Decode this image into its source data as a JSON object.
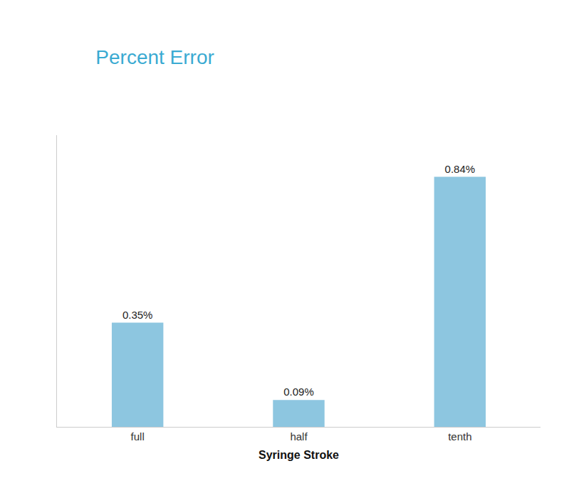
{
  "chart_data": {
    "type": "bar",
    "title": "Percent Error",
    "xlabel": "Syringe Stroke",
    "categories": [
      "full",
      "half",
      "tenth"
    ],
    "values": [
      0.35,
      0.09,
      0.84
    ],
    "value_labels": [
      "0.35%",
      "0.09%",
      "0.84%"
    ],
    "color": "#8DC6E0",
    "ylim": [
      0,
      0.98
    ],
    "yticks": [],
    "grid": false,
    "data_labels": true,
    "tick_labels": "x"
  }
}
